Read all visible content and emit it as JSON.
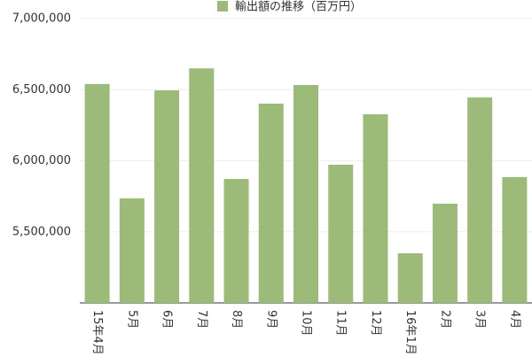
{
  "chart_data": {
    "type": "bar",
    "series": [
      {
        "name": "輸出額の推移（百万円）",
        "color": "#9dbb78",
        "values": [
          6540000,
          5735000,
          6495000,
          6650000,
          5872000,
          6402000,
          6533000,
          5972000,
          6327000,
          5349000,
          5698000,
          6445000,
          5885000
        ]
      }
    ],
    "categories": [
      "15年4月",
      "5月",
      "6月",
      "7月",
      "8月",
      "9月",
      "10月",
      "11月",
      "12月",
      "16年1月",
      "2月",
      "3月",
      "4月"
    ],
    "ylim": [
      5000000,
      7000000
    ],
    "yticks": [
      {
        "value": 5500000,
        "label": "5,500,000"
      },
      {
        "value": 6000000,
        "label": "6,000,000"
      },
      {
        "value": 6500000,
        "label": "6,500,000"
      },
      {
        "value": 7000000,
        "label": "7,000,000"
      }
    ],
    "grid": true,
    "legend": "top"
  }
}
